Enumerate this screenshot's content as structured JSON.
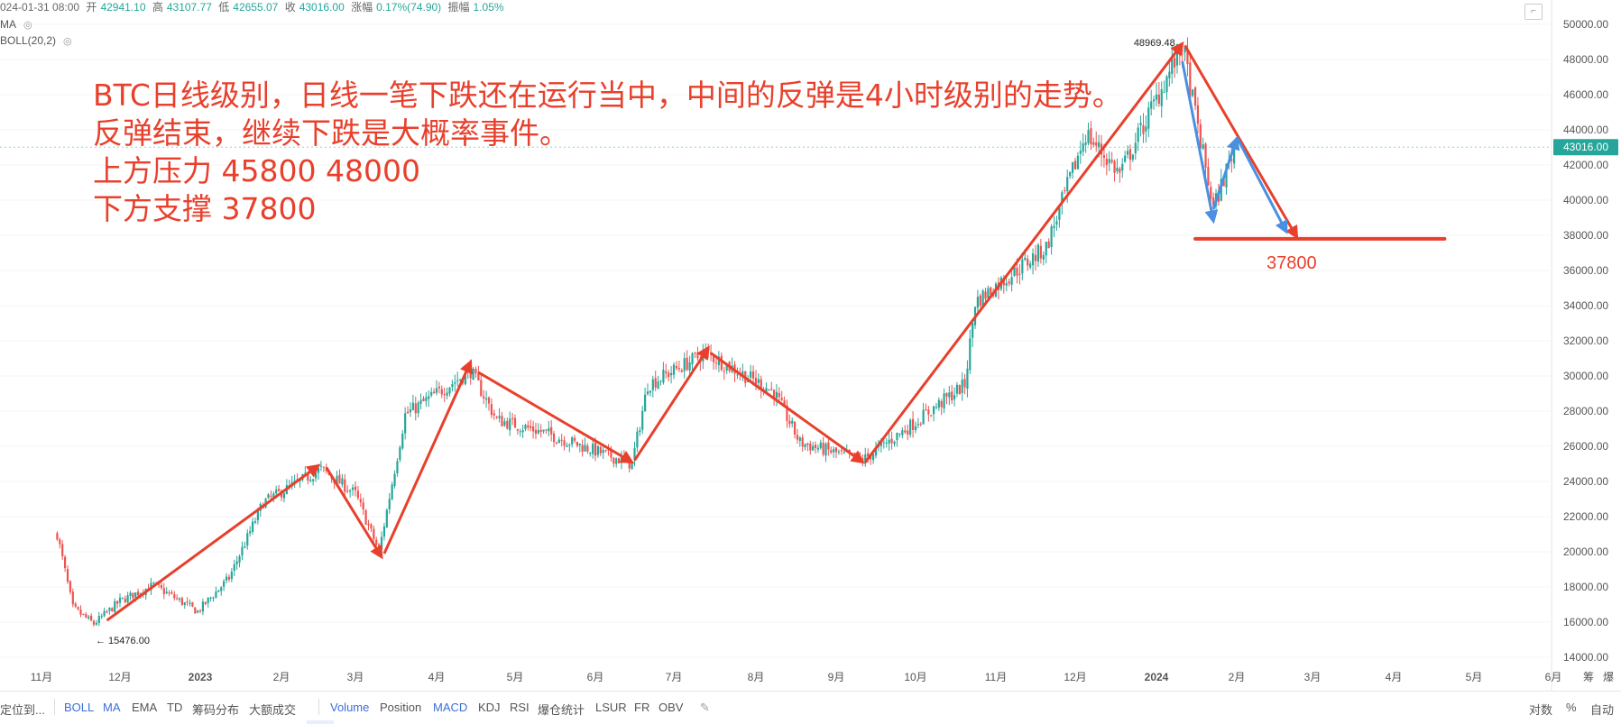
{
  "header": {
    "date": "024-01-31 08:00",
    "open_label": "开",
    "open": "42941.10",
    "high_label": "高",
    "high": "43107.77",
    "low_label": "低",
    "low": "42655.07",
    "close_label": "收",
    "close": "43016.00",
    "change_label": "涨幅",
    "change": "0.17%(74.90)",
    "amplitude_label": "振幅",
    "amplitude": "1.05%"
  },
  "indicators": {
    "ma": "MA",
    "boll": "BOLL(20,2)"
  },
  "annotation": {
    "line1": "BTC日线级别，日线一笔下跌还在运行当中，中间的反弹是4小时级别的走势。",
    "line2": "反弹结束，继续下跌是大概率事件。",
    "line3": "上方压力 45800  48000",
    "line4": "下方支撑 37800"
  },
  "chart_data": {
    "type": "candlestick",
    "x": [
      "11月",
      "12月",
      "2023",
      "2月",
      "3月",
      "4月",
      "5月",
      "6月",
      "7月",
      "8月",
      "9月",
      "10月",
      "11月",
      "12月",
      "2024",
      "2月",
      "3月",
      "4月",
      "5月",
      "6月"
    ],
    "yticks": [
      "14000.00",
      "16000.00",
      "18000.00",
      "20000.00",
      "22000.00",
      "24000.00",
      "26000.00",
      "28000.00",
      "30000.00",
      "32000.00",
      "34000.00",
      "36000.00",
      "38000.00",
      "40000.00",
      "42000.00",
      "44000.00",
      "46000.00",
      "48000.00",
      "50000.00"
    ],
    "ylim": [
      14000,
      50000
    ],
    "current_price": "43016.00",
    "high_marker": "48969.48",
    "low_marker": "15476.00",
    "support_label": "37800",
    "support_level": 37800,
    "resistance_levels": [
      45800,
      48000
    ],
    "path_points": [
      {
        "date": "2022-11-07",
        "price": 21000
      },
      {
        "date": "2022-11-13",
        "price": 16800
      },
      {
        "date": "2022-11-21",
        "price": 15900
      },
      {
        "date": "2022-12-01",
        "price": 17200
      },
      {
        "date": "2022-12-14",
        "price": 18100
      },
      {
        "date": "2022-12-31",
        "price": 16600
      },
      {
        "date": "2023-01-12",
        "price": 18500
      },
      {
        "date": "2023-01-25",
        "price": 22800
      },
      {
        "date": "2023-02-16",
        "price": 24700
      },
      {
        "date": "2023-03-01",
        "price": 23300
      },
      {
        "date": "2023-03-10",
        "price": 20000
      },
      {
        "date": "2023-03-20",
        "price": 27800
      },
      {
        "date": "2023-04-14",
        "price": 30300
      },
      {
        "date": "2023-04-24",
        "price": 27500
      },
      {
        "date": "2023-05-12",
        "price": 26800
      },
      {
        "date": "2023-06-15",
        "price": 25000
      },
      {
        "date": "2023-06-21",
        "price": 29500
      },
      {
        "date": "2023-07-13",
        "price": 31300
      },
      {
        "date": "2023-08-08",
        "price": 29100
      },
      {
        "date": "2023-08-18",
        "price": 26200
      },
      {
        "date": "2023-09-11",
        "price": 25200
      },
      {
        "date": "2023-10-02",
        "price": 27500
      },
      {
        "date": "2023-10-20",
        "price": 29500
      },
      {
        "date": "2023-10-24",
        "price": 34200
      },
      {
        "date": "2023-11-20",
        "price": 37300
      },
      {
        "date": "2023-12-05",
        "price": 43800
      },
      {
        "date": "2023-12-18",
        "price": 41500
      },
      {
        "date": "2024-01-11",
        "price": 48800
      },
      {
        "date": "2024-01-23",
        "price": 39500
      },
      {
        "date": "2024-01-31",
        "price": 43016
      }
    ],
    "daily_candles": [
      {
        "date": "2024-01-31",
        "open": 42941.1,
        "high": 43107.77,
        "low": 42655.07,
        "close": 43016.0
      }
    ]
  },
  "bottombar": {
    "locate": "定位到...",
    "items": [
      "BOLL",
      "MA",
      "EMA",
      "TD",
      "筹码分布",
      "大额成交"
    ],
    "items2": [
      "Volume",
      "Position",
      "MACD",
      "KDJ",
      "RSI",
      "爆仓统计",
      "LSUR",
      "FR",
      "OBV"
    ],
    "right": [
      "对数",
      "%",
      "自动"
    ]
  },
  "axis_right_labels": [
    "筹",
    "爆"
  ],
  "colors": {
    "up": "#26a69a",
    "down": "#ef5350",
    "annot": "#e8402c",
    "arrow_blue": "#4a90e2"
  }
}
